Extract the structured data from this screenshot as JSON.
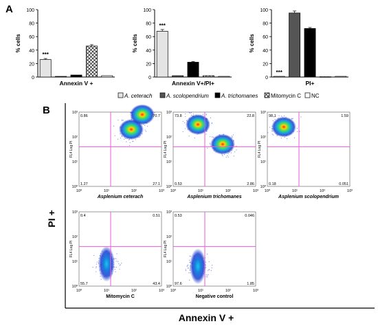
{
  "panel_labels": {
    "a": "A",
    "b": "B"
  },
  "panel_a": {
    "y_axis_label": "% cells",
    "y_ticks": [
      "0",
      "20",
      "40",
      "60",
      "80",
      "100"
    ],
    "significance": "***"
  },
  "legend": {
    "items": [
      {
        "label": "A. ceterach",
        "fill": "#e4e4e4"
      },
      {
        "label": "A. scolopendrium",
        "fill": "#555555"
      },
      {
        "label": "A. trichomanes",
        "fill": "#000000"
      },
      {
        "label": "Mitomycin C",
        "fill": "hatch"
      },
      {
        "label": "NC",
        "fill": "#ffffff"
      }
    ]
  },
  "panel_b": {
    "y_axis_label": "PI +",
    "x_axis_label": "Annexin V +",
    "plot_axis_label": "FL4 Log PI",
    "tick_labels": [
      "10⁰",
      "10¹",
      "10²",
      "10³"
    ]
  },
  "chart_data": [
    {
      "type": "bar",
      "xlabel": "Annexin V +",
      "ylabel": "% cells",
      "ylim": [
        0,
        100
      ],
      "categories": [
        "A. ceterach",
        "A. scolopendrium",
        "A. trichomanes",
        "Mitomycin C",
        "NC"
      ],
      "values": [
        26,
        1,
        3,
        46,
        2
      ],
      "errors": [
        1.5,
        0.3,
        0.4,
        2.0,
        0.4
      ],
      "annotations": [
        {
          "category": "A. ceterach",
          "text": "***"
        }
      ]
    },
    {
      "type": "bar",
      "xlabel": "Annexin V+/PI+",
      "ylabel": "% cells",
      "ylim": [
        0,
        100
      ],
      "categories": [
        "A. ceterach",
        "A. scolopendrium",
        "A. trichomanes",
        "Mitomycin C",
        "NC"
      ],
      "values": [
        68,
        2,
        22,
        2,
        1
      ],
      "errors": [
        2.5,
        0.3,
        1.0,
        0.3,
        0.2
      ],
      "annotations": [
        {
          "category": "A. ceterach",
          "text": "***"
        }
      ]
    },
    {
      "type": "bar",
      "xlabel": "PI+",
      "ylabel": "% cells",
      "ylim": [
        0,
        100
      ],
      "categories": [
        "A. ceterach",
        "A. scolopendrium",
        "A. trichomanes",
        "Mitomycin C",
        "NC"
      ],
      "values": [
        1,
        95,
        72,
        0.5,
        1
      ],
      "errors": [
        0.2,
        3.0,
        1.5,
        0.1,
        0.2
      ],
      "annotations": [
        {
          "category": "A. ceterach",
          "text": "***"
        }
      ]
    },
    {
      "type": "scatter",
      "title": "Asplenium ceterach",
      "quadrants": {
        "ul": "0.86",
        "ur": "70.7",
        "ll": "1.27",
        "lr": "27.1"
      },
      "density_centers": [
        {
          "x": 1.9,
          "y": 2.3
        },
        {
          "x": 2.3,
          "y": 2.9
        }
      ]
    },
    {
      "type": "scatter",
      "title": "Asplenium trichomanes",
      "quadrants": {
        "ul": "73.8",
        "ur": "22.8",
        "ll": "0.53",
        "lr": "2.86"
      },
      "density_centers": [
        {
          "x": 0.9,
          "y": 2.5
        },
        {
          "x": 1.8,
          "y": 1.7
        }
      ]
    },
    {
      "type": "scatter",
      "title": "Asplenium scolopendrium",
      "quadrants": {
        "ul": "98.1",
        "ur": "1.59",
        "ll": "0.18",
        "lr": "0.051"
      },
      "density_centers": [
        {
          "x": 0.6,
          "y": 2.4
        }
      ]
    },
    {
      "type": "scatter",
      "title": "Mitomycin C",
      "quadrants": {
        "ul": "0.4",
        "ur": "0.51",
        "ll": "55.7",
        "lr": "43.4"
      },
      "density_centers": [
        {
          "x": 1.0,
          "y": 0.9
        }
      ]
    },
    {
      "type": "scatter",
      "title": "Negative control",
      "quadrants": {
        "ul": "0.53",
        "ur": "0.046",
        "ll": "97.6",
        "lr": "1.85"
      },
      "density_centers": [
        {
          "x": 0.9,
          "y": 0.8
        }
      ]
    }
  ]
}
